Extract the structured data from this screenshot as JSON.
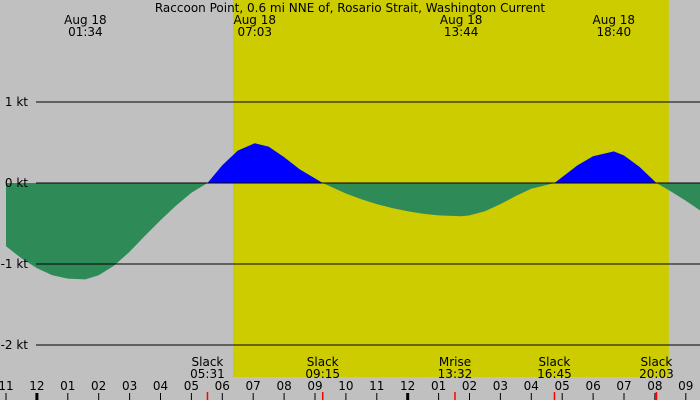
{
  "chart_data": {
    "type": "area",
    "title": "Raccoon Point, 0.6 mi NNE of, Rosario Strait, Washington Current",
    "xlabel": "",
    "ylabel": "",
    "x_range_hours": [
      11.0,
      33.5
    ],
    "ylim": [
      -2.0,
      2.0
    ],
    "y_ticks": [
      {
        "value": 1,
        "label": "1 kt"
      },
      {
        "value": 0,
        "label": "0 kt"
      },
      {
        "value": -1,
        "label": "-1 kt"
      },
      {
        "value": -2,
        "label": "-2 kt"
      }
    ],
    "x_ticks": [
      {
        "hour": 11,
        "label": "11"
      },
      {
        "hour": 12,
        "label": "12"
      },
      {
        "hour": 13,
        "label": "01"
      },
      {
        "hour": 14,
        "label": "02"
      },
      {
        "hour": 15,
        "label": "03"
      },
      {
        "hour": 16,
        "label": "04"
      },
      {
        "hour": 17,
        "label": "05"
      },
      {
        "hour": 18,
        "label": "06"
      },
      {
        "hour": 19,
        "label": "07"
      },
      {
        "hour": 20,
        "label": "08"
      },
      {
        "hour": 21,
        "label": "09"
      },
      {
        "hour": 22,
        "label": "10"
      },
      {
        "hour": 23,
        "label": "11"
      },
      {
        "hour": 24,
        "label": "12"
      },
      {
        "hour": 25,
        "label": "01"
      },
      {
        "hour": 26,
        "label": "02"
      },
      {
        "hour": 27,
        "label": "03"
      },
      {
        "hour": 28,
        "label": "04"
      },
      {
        "hour": 29,
        "label": "05"
      },
      {
        "hour": 30,
        "label": "06"
      },
      {
        "hour": 31,
        "label": "07"
      },
      {
        "hour": 32,
        "label": "08"
      },
      {
        "hour": 33,
        "label": "09"
      }
    ],
    "daylight": {
      "start_hour": 18.35,
      "end_hour": 32.45
    },
    "top_events": [
      {
        "hour": 13.57,
        "date": "Aug 18",
        "time": "01:34"
      },
      {
        "hour": 19.05,
        "date": "Aug 18",
        "time": "07:03"
      },
      {
        "hour": 25.73,
        "date": "Aug 18",
        "time": "13:44"
      },
      {
        "hour": 30.67,
        "date": "Aug 18",
        "time": "18:40"
      }
    ],
    "bottom_events": [
      {
        "hour": 17.52,
        "label": "Slack",
        "time": "05:31"
      },
      {
        "hour": 21.25,
        "label": "Slack",
        "time": "09:15"
      },
      {
        "hour": 25.53,
        "label": "Mrise",
        "time": "13:32"
      },
      {
        "hour": 28.75,
        "label": "Slack",
        "time": "16:45"
      },
      {
        "hour": 32.05,
        "label": "Slack",
        "time": "20:03"
      }
    ],
    "series": [
      {
        "x": [
          11.0,
          11.5,
          12.0,
          12.5,
          13.0,
          13.57,
          14.0,
          14.5,
          15.0,
          15.5,
          16.0,
          16.5,
          17.0,
          17.52,
          18.0,
          18.5,
          19.05,
          19.5,
          20.0,
          20.5,
          21.25,
          22.0,
          22.5,
          23.0,
          23.5,
          24.0,
          24.5,
          25.0,
          25.73,
          26.0,
          26.5,
          27.0,
          27.5,
          28.0,
          28.75,
          29.5,
          30.0,
          30.67,
          31.0,
          31.5,
          32.05,
          32.5,
          33.0,
          33.5
        ],
        "y": [
          -0.78,
          -0.93,
          -1.05,
          -1.14,
          -1.18,
          -1.19,
          -1.14,
          -1.02,
          -0.85,
          -0.65,
          -0.46,
          -0.28,
          -0.12,
          0.0,
          0.22,
          0.4,
          0.49,
          0.45,
          0.32,
          0.17,
          0.0,
          -0.13,
          -0.2,
          -0.26,
          -0.31,
          -0.35,
          -0.38,
          -0.4,
          -0.41,
          -0.4,
          -0.35,
          -0.26,
          -0.16,
          -0.07,
          0.0,
          0.22,
          0.33,
          0.39,
          0.34,
          0.2,
          0.0,
          -0.1,
          -0.22,
          -0.35
        ]
      }
    ],
    "colors": {
      "background": "#c0c0c0",
      "daylight": "#cccc00",
      "flood": "#0000ff",
      "ebb": "#2e8b57",
      "gridline": "#000000",
      "event_tick": "#ff0000"
    }
  }
}
